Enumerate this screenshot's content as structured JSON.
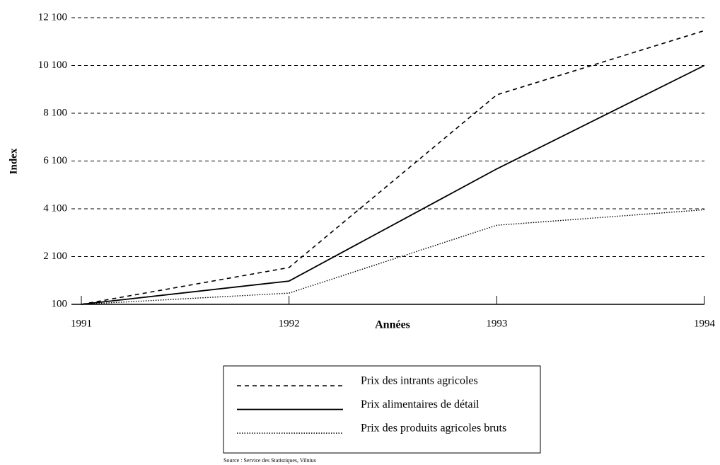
{
  "chart_data": {
    "type": "line",
    "x": [
      1991,
      1992,
      1993,
      1994
    ],
    "xlim": [
      1991,
      1994
    ],
    "xticks": [
      1991,
      1992,
      1993,
      1994
    ],
    "ylim": [
      100,
      12100
    ],
    "yticks": [
      100,
      {
        "value": 2100,
        "label": "2 100"
      },
      {
        "value": 4100,
        "label": "4 100"
      },
      {
        "value": 6100,
        "label": "6 100"
      },
      {
        "value": 8100,
        "label": "8 100"
      },
      {
        "value": 10100,
        "label": "10 100"
      },
      {
        "value": 12100,
        "label": "12 100"
      }
    ],
    "ylabel": "Index",
    "xlabel": "Années",
    "grid": true,
    "series": [
      {
        "name": "Prix des intrants agricoles",
        "color": "#000000",
        "style": "dashed",
        "values": [
          100,
          1640,
          8870,
          11560
        ]
      },
      {
        "name": "Prix alimentaires de détail",
        "color": "#000000",
        "style": "solid",
        "values": [
          100,
          1075,
          5770,
          10100
        ]
      },
      {
        "name": "Prix des produits agricoles bruts",
        "color": "#000000",
        "style": "dotted",
        "values": [
          100,
          570,
          3410,
          4060
        ]
      }
    ],
    "source": "Source : Service des Statistiques, Vilnius"
  }
}
